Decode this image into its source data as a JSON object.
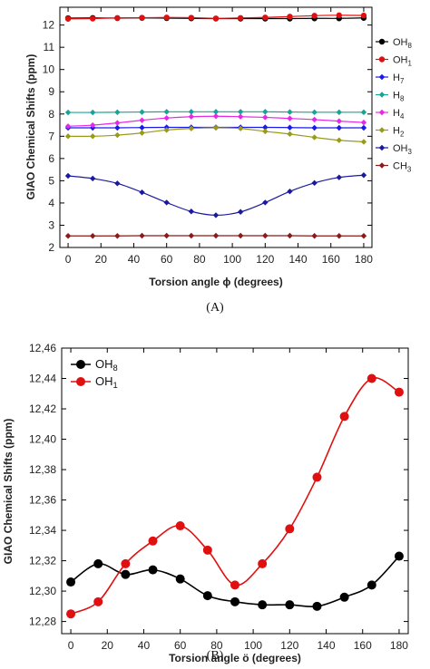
{
  "chart_data": [
    {
      "type": "line",
      "title": "",
      "xlabel": "Torsion angle ϕ (degrees)",
      "ylabel": "GIAO Chemical Shifts (ppm)",
      "caption": "(A)",
      "xlim": [
        -5,
        185
      ],
      "ylim": [
        2,
        12.8
      ],
      "xticks": [
        0,
        20,
        40,
        60,
        80,
        100,
        120,
        140,
        160,
        180
      ],
      "yticks": [
        2,
        3,
        4,
        5,
        6,
        7,
        8,
        9,
        10,
        11,
        12
      ],
      "legend_position": "right-outside",
      "x": [
        0,
        15,
        30,
        45,
        60,
        75,
        90,
        105,
        120,
        135,
        150,
        165,
        180
      ],
      "series": [
        {
          "name": "OH8",
          "color": "#000000",
          "marker": "circle",
          "values": [
            12.31,
            12.32,
            12.31,
            12.32,
            12.31,
            12.3,
            12.29,
            12.29,
            12.29,
            12.29,
            12.3,
            12.3,
            12.32
          ]
        },
        {
          "name": "OH1",
          "color": "#e01010",
          "marker": "circle",
          "values": [
            12.28,
            12.29,
            12.32,
            12.33,
            12.34,
            12.33,
            12.3,
            12.32,
            12.34,
            12.38,
            12.42,
            12.44,
            12.43
          ]
        },
        {
          "name": "H7",
          "color": "#1a1ae6",
          "marker": "diamond",
          "values": [
            7.38,
            7.38,
            7.38,
            7.39,
            7.4,
            7.4,
            7.4,
            7.4,
            7.4,
            7.39,
            7.38,
            7.38,
            7.38
          ]
        },
        {
          "name": "H8",
          "color": "#17a39a",
          "marker": "diamond",
          "values": [
            8.07,
            8.07,
            8.08,
            8.09,
            8.1,
            8.1,
            8.1,
            8.1,
            8.1,
            8.09,
            8.08,
            8.08,
            8.08
          ]
        },
        {
          "name": "H4",
          "color": "#e629e6",
          "marker": "diamond",
          "values": [
            7.45,
            7.5,
            7.6,
            7.72,
            7.82,
            7.88,
            7.9,
            7.88,
            7.85,
            7.8,
            7.75,
            7.68,
            7.62
          ]
        },
        {
          "name": "H2",
          "color": "#9a9a1a",
          "marker": "diamond",
          "values": [
            7.0,
            7.0,
            7.05,
            7.15,
            7.28,
            7.35,
            7.38,
            7.35,
            7.22,
            7.1,
            6.95,
            6.82,
            6.75
          ]
        },
        {
          "name": "OH3",
          "color": "#1a1aa0",
          "marker": "diamond",
          "values": [
            5.22,
            5.1,
            4.88,
            4.48,
            4.02,
            3.62,
            3.45,
            3.6,
            4.02,
            4.52,
            4.9,
            5.15,
            5.25
          ]
        },
        {
          "name": "CH3",
          "color": "#8b1a1a",
          "marker": "diamond",
          "values": [
            2.52,
            2.52,
            2.52,
            2.53,
            2.53,
            2.53,
            2.53,
            2.53,
            2.53,
            2.53,
            2.52,
            2.52,
            2.52
          ]
        }
      ],
      "legend_labels": [
        {
          "main": "OH",
          "sub": "8"
        },
        {
          "main": "OH",
          "sub": "1"
        },
        {
          "main": "H",
          "sub": "7"
        },
        {
          "main": "H",
          "sub": "8"
        },
        {
          "main": "H",
          "sub": "4"
        },
        {
          "main": "H",
          "sub": "2"
        },
        {
          "main": "OH",
          "sub": "3"
        },
        {
          "main": "CH",
          "sub": "3"
        }
      ],
      "ytick_labels": [
        "2",
        "3",
        "4",
        "5",
        "6",
        "7",
        "8",
        "9",
        "10",
        "11",
        "12"
      ],
      "xtick_labels": [
        "0",
        "20",
        "40",
        "60",
        "80",
        "100",
        "120",
        "140",
        "160",
        "180"
      ]
    },
    {
      "type": "line",
      "title": "",
      "xlabel": "Torsion angle ö (degrees)",
      "ylabel": "GIAO Chemical Shifts (ppm)",
      "caption": "(B)",
      "xlim": [
        -5,
        185
      ],
      "ylim": [
        12.272,
        12.46
      ],
      "xticks": [
        0,
        20,
        40,
        60,
        80,
        100,
        120,
        140,
        160,
        180
      ],
      "yticks": [
        12.28,
        12.3,
        12.32,
        12.34,
        12.36,
        12.38,
        12.4,
        12.42,
        12.44,
        12.46
      ],
      "legend_position": "top-left",
      "x": [
        0,
        15,
        30,
        45,
        60,
        75,
        90,
        105,
        120,
        135,
        150,
        165,
        180
      ],
      "series": [
        {
          "name": "OH8",
          "color": "#000000",
          "marker": "circle",
          "values": [
            12.306,
            12.318,
            12.311,
            12.314,
            12.308,
            12.297,
            12.293,
            12.291,
            12.291,
            12.29,
            12.296,
            12.304,
            12.323
          ]
        },
        {
          "name": "OH1",
          "color": "#e01010",
          "marker": "circle",
          "values": [
            12.285,
            12.293,
            12.318,
            12.333,
            12.343,
            12.327,
            12.304,
            12.318,
            12.341,
            12.375,
            12.415,
            12.44,
            12.431
          ]
        }
      ],
      "legend_labels": [
        {
          "main": "OH",
          "sub": "8"
        },
        {
          "main": "OH",
          "sub": "1"
        }
      ],
      "ytick_labels": [
        "12,28",
        "12,30",
        "12,32",
        "12,34",
        "12,36",
        "12,38",
        "12,40",
        "12,42",
        "12,44",
        "12,46"
      ],
      "xtick_labels": [
        "0",
        "20",
        "40",
        "60",
        "80",
        "100",
        "120",
        "140",
        "160",
        "180"
      ]
    }
  ]
}
